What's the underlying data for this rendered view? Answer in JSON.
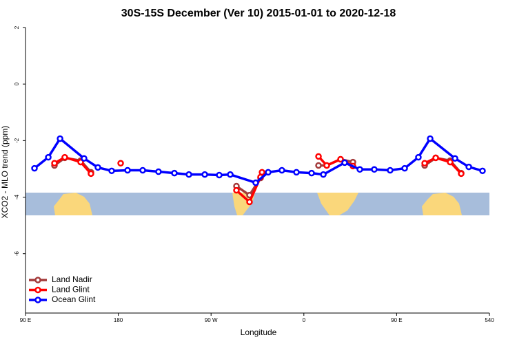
{
  "chart_data": {
    "type": "line",
    "title": "30S-15S December (Ver 10)   2015-01-01 to 2020-12-18",
    "x_label": "Longitude",
    "y_label": "XCO2 - MLO trend (ppm)",
    "xlim": [
      90,
      540
    ],
    "ylim": [
      -8.1,
      2
    ],
    "xticks": [
      {
        "value": 90,
        "label": "90 E"
      },
      180,
      {
        "value": 270,
        "label": "90 W"
      },
      {
        "value": 360,
        "label": "0"
      },
      {
        "value": 450,
        "label": "90 E"
      },
      540
    ],
    "yticks": [
      2,
      0,
      -2,
      -4,
      -6
    ],
    "legend": "bottom-left",
    "series": [
      {
        "name": "Land Nadir",
        "color": "#a33a3a",
        "x": [
          118.1,
          128.1,
          143.5,
          153.5,
          null,
          294.6,
          307.3,
          318,
          null,
          374.2,
          382.2,
          395.6,
          407.6,
          null,
          477.2,
          487.9,
          501.9,
          512.6
        ],
        "values": [
          -2.88,
          -2.61,
          -2.71,
          -3.12,
          null,
          -3.61,
          -3.93,
          -3.32,
          null,
          -2.88,
          -2.88,
          -2.66,
          -2.76,
          null,
          -2.88,
          -2.61,
          -2.71,
          -3.15
        ]
      },
      {
        "name": "Land Glint",
        "color": "#ff0000",
        "x": [
          118.1,
          128.1,
          143.5,
          153.5,
          null,
          182.3,
          null,
          294.6,
          307.3,
          318,
          319.4,
          null,
          374.2,
          382.2,
          395.6,
          407.6,
          null,
          477.2,
          487.9,
          501.9,
          512.6
        ],
        "values": [
          -2.8,
          -2.59,
          -2.76,
          -3.17,
          null,
          -2.8,
          null,
          -3.76,
          -4.17,
          -3.29,
          -3.12,
          null,
          -2.56,
          -2.88,
          -2.66,
          -2.9,
          null,
          -2.8,
          -2.61,
          -2.76,
          -3.17
        ]
      },
      {
        "name": "Ocean Glint",
        "color": "#0000ff",
        "x": [
          98.7,
          112.1,
          123.5,
          146.8,
          160.2,
          173.6,
          189,
          203.7,
          219,
          234.4,
          248.5,
          263.9,
          277.9,
          288.6,
          313.3,
          325.4,
          338.7,
          352.8,
          367.5,
          378.9,
          399.6,
          414.3,
          428.3,
          443.7,
          457.8,
          471.1,
          482.5,
          506.6,
          520,
          533.3
        ],
        "values": [
          -2.98,
          -2.59,
          -1.93,
          -2.63,
          -2.95,
          -3.07,
          -3.05,
          -3.05,
          -3.1,
          -3.15,
          -3.2,
          -3.2,
          -3.22,
          -3.2,
          -3.49,
          -3.12,
          -3.05,
          -3.12,
          -3.15,
          -3.2,
          -2.78,
          -3.02,
          -3.02,
          -3.05,
          -2.98,
          -2.59,
          -1.93,
          -2.63,
          -2.93,
          -3.07
        ]
      }
    ]
  }
}
